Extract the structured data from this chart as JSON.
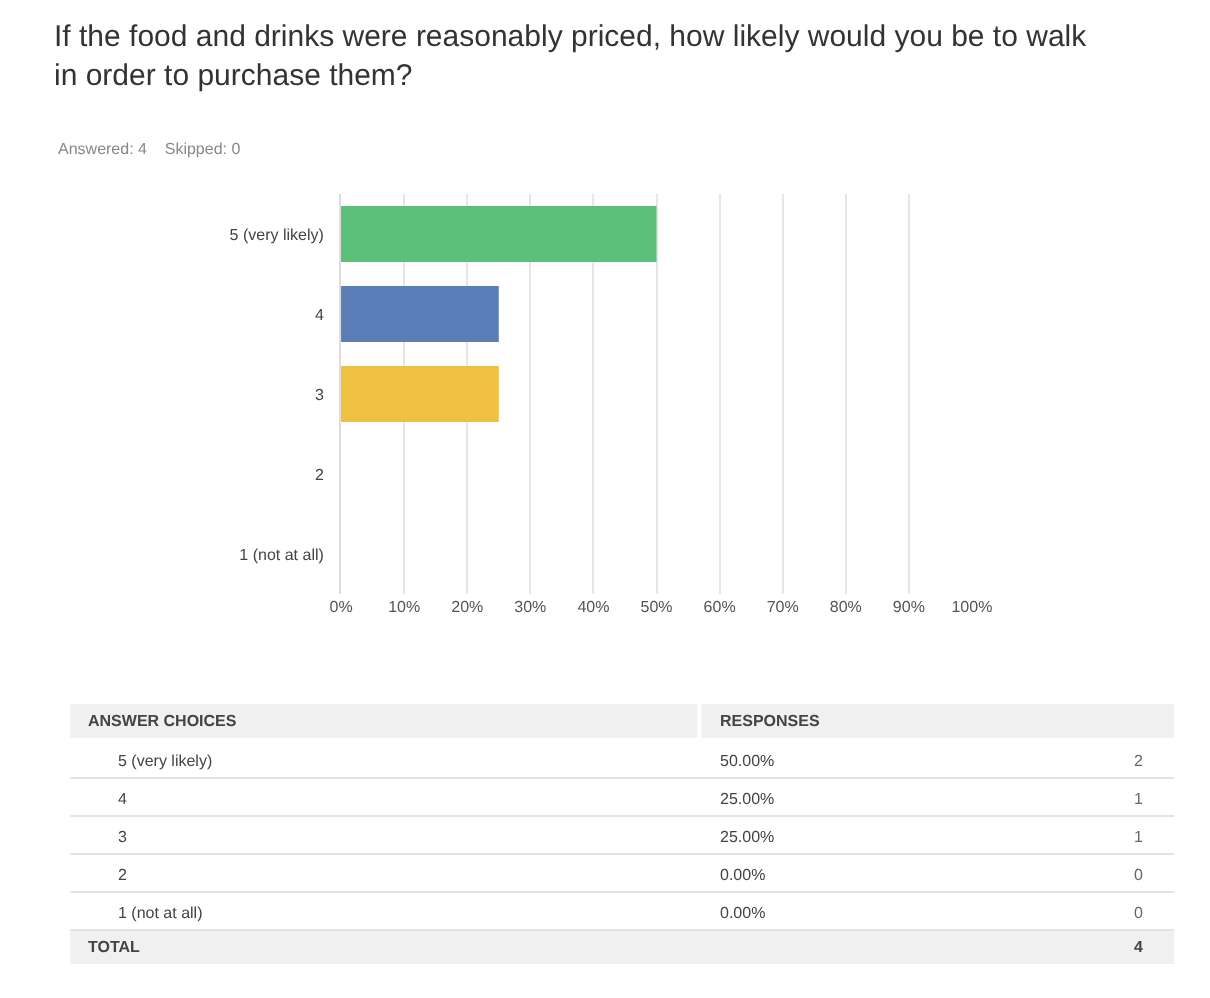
{
  "chart_data": {
    "type": "bar",
    "orientation": "horizontal",
    "title": "If the food and drinks were reasonably priced, how likely would you be to walk in order to purchase them?",
    "subtitle": "Answered: 4    Skipped: 0",
    "categories": [
      "5 (very likely)",
      "4",
      "3",
      "2",
      "1 (not at all)"
    ],
    "values": [
      50,
      25,
      25,
      0,
      0
    ],
    "colors": [
      "#5bbf7a",
      "#5b7db8",
      "#f0c040",
      "#e0855b",
      "#9b7cc0"
    ],
    "xlim": [
      0,
      100
    ],
    "xticks": [
      {
        "value": 0,
        "label": "0%"
      },
      {
        "value": 10,
        "label": "10%"
      },
      {
        "value": 20,
        "label": "20%"
      },
      {
        "value": 30,
        "label": "30%"
      },
      {
        "value": 40,
        "label": "40%"
      },
      {
        "value": 50,
        "label": "50%"
      },
      {
        "value": 60,
        "label": "60%"
      },
      {
        "value": 70,
        "label": "70%"
      },
      {
        "value": 80,
        "label": "80%"
      },
      {
        "value": 90,
        "label": "90%"
      },
      {
        "value": 100,
        "label": "100%"
      }
    ],
    "grid": "x",
    "annotations": [
      "ANSWER CHOICES",
      "RESPONSES",
      "2",
      "1",
      "1",
      "0",
      "0",
      "TOTAL",
      "4",
      "50.00%",
      "25.00%",
      "25.00%",
      "0.00%",
      "0.00%"
    ]
  }
}
